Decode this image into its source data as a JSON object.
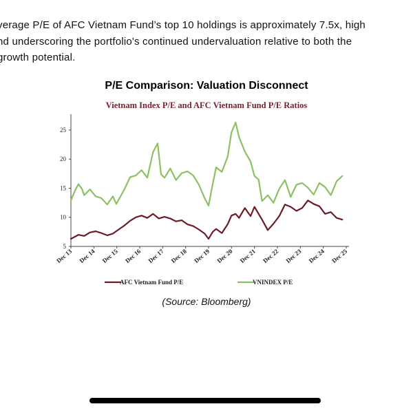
{
  "article": {
    "lines": [
      "verage P/E of AFC Vietnam Fund’s top 10 holdings is approximately 7.5x, high",
      "nd underscoring the portfolio's continued undervaluation relative to both the",
      "growth potential."
    ]
  },
  "source": "(Source: Bloomberg)",
  "chart_data": {
    "type": "line",
    "title": "P/E Comparison: Valuation Disconnect",
    "subtitle": "Vietnam Index P/E and AFC Vietnam Fund P/E Ratios",
    "x_tick_labels": [
      "Dec 13",
      "Dec 14",
      "Dec 15",
      "Dec 16",
      "Dec 17",
      "Dec 18",
      "Dec 19",
      "Dec 20",
      "Dec 21",
      "Dec 22",
      "Dec 23",
      "Dec 24",
      "Dec 25"
    ],
    "ylim": [
      5,
      27
    ],
    "yticks": [
      5,
      10,
      15,
      20,
      25
    ],
    "grid": false,
    "legend_position": "bottom",
    "series": [
      {
        "name": "AFC Vietnam Fund P/E",
        "color": "#6b1a26",
        "x": [
          2013.92,
          2014.25,
          2014.5,
          2014.75,
          2015.0,
          2015.25,
          2015.5,
          2015.75,
          2016.0,
          2016.25,
          2016.5,
          2016.75,
          2017.0,
          2017.25,
          2017.5,
          2017.75,
          2018.0,
          2018.25,
          2018.5,
          2018.75,
          2019.0,
          2019.25,
          2019.5,
          2019.75,
          2019.92,
          2020.1,
          2020.25,
          2020.5,
          2020.75,
          2020.92,
          2021.1,
          2021.25,
          2021.5,
          2021.75,
          2021.92,
          2022.1,
          2022.25,
          2022.5,
          2022.75,
          2023.0,
          2023.25,
          2023.5,
          2023.75,
          2024.0,
          2024.25,
          2024.5,
          2024.75,
          2025.0,
          2025.25,
          2025.5,
          2025.75
        ],
        "y": [
          6.3,
          7.0,
          6.8,
          7.4,
          7.6,
          7.3,
          6.9,
          7.2,
          7.9,
          8.6,
          9.4,
          10.0,
          10.3,
          9.9,
          10.6,
          9.8,
          10.1,
          9.8,
          9.3,
          9.5,
          8.8,
          8.5,
          7.9,
          7.2,
          6.3,
          7.5,
          8.0,
          7.3,
          8.8,
          10.3,
          10.6,
          9.9,
          11.6,
          10.2,
          11.8,
          10.6,
          9.6,
          7.8,
          8.9,
          10.2,
          12.2,
          11.8,
          11.1,
          11.6,
          12.9,
          12.3,
          11.9,
          10.6,
          10.9,
          9.9,
          9.6
        ]
      },
      {
        "name": "VNINDEX P/E",
        "color": "#8dc063",
        "x": [
          2013.92,
          2014.1,
          2014.25,
          2014.4,
          2014.5,
          2014.75,
          2015.0,
          2015.25,
          2015.5,
          2015.75,
          2015.9,
          2016.25,
          2016.5,
          2016.75,
          2017.0,
          2017.25,
          2017.5,
          2017.7,
          2017.85,
          2018.0,
          2018.25,
          2018.5,
          2018.75,
          2019.0,
          2019.25,
          2019.5,
          2019.75,
          2019.92,
          2020.1,
          2020.25,
          2020.5,
          2020.75,
          2020.92,
          2021.1,
          2021.25,
          2021.5,
          2021.75,
          2021.92,
          2022.1,
          2022.25,
          2022.5,
          2022.75,
          2023.0,
          2023.25,
          2023.5,
          2023.75,
          2024.0,
          2024.25,
          2024.5,
          2024.75,
          2025.0,
          2025.25,
          2025.5,
          2025.75
        ],
        "y": [
          12.9,
          14.6,
          15.7,
          14.9,
          13.8,
          14.8,
          13.6,
          13.3,
          12.2,
          13.6,
          12.3,
          14.8,
          16.9,
          17.2,
          18.1,
          16.8,
          21.2,
          22.7,
          17.4,
          16.8,
          18.4,
          16.4,
          17.6,
          17.9,
          17.2,
          15.6,
          13.3,
          12.0,
          15.7,
          18.6,
          17.8,
          20.4,
          24.6,
          26.3,
          23.8,
          21.3,
          19.6,
          17.1,
          16.5,
          12.8,
          13.8,
          12.5,
          14.9,
          16.4,
          13.5,
          15.6,
          15.9,
          15.1,
          13.9,
          15.9,
          15.2,
          13.8,
          16.2,
          17.1
        ]
      }
    ]
  }
}
